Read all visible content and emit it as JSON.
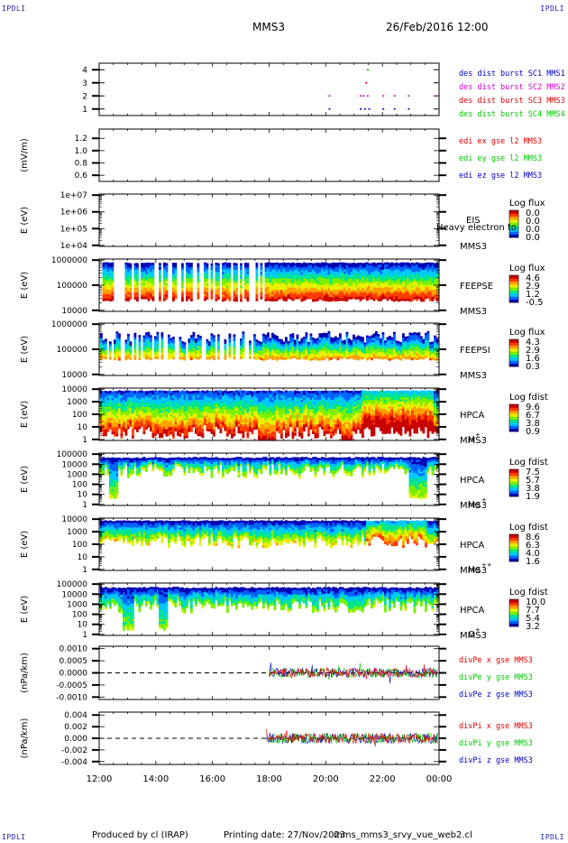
{
  "header": {
    "corner_label": "IPDLI",
    "spacecraft": "MMS3",
    "datetime": "26/Feb/2016 12:00"
  },
  "footer": {
    "produced_by": "Produced by cl (IRAP)",
    "printing_date": "Printing date: 27/Nov/2023",
    "filename": "mms_mms3_srvy_vue_web2.cl"
  },
  "colors": {
    "blue": "#0000c8",
    "magenta": "#d200d2",
    "red": "#dc0000",
    "green": "#00c800",
    "spectrogram_colormap": [
      "#0000b4",
      "#0064ff",
      "#00c8ff",
      "#00e68c",
      "#78f000",
      "#e6f000",
      "#ffa000",
      "#ff3c00",
      "#c80000"
    ]
  },
  "chart_data": [
    {
      "id": "des-dist-burst",
      "type": "scatter",
      "x_range": [
        "12:00",
        "00:00"
      ],
      "ylim": [
        0.5,
        4.5
      ],
      "yticks": [
        "1",
        "2",
        "3",
        "4"
      ],
      "series": [
        {
          "name": "des dist burst SC1 MMS1",
          "color": "#0000c8",
          "y": 1,
          "x_hours": [
            20.1,
            21.2,
            21.35,
            21.5,
            22.0,
            22.4,
            22.9
          ]
        },
        {
          "name": "des dist burst SC2 MMS2",
          "color": "#d200d2",
          "y": 2,
          "x_hours": [
            20.1,
            21.2,
            21.3,
            21.45,
            22.0,
            22.4,
            22.9,
            23.9
          ]
        },
        {
          "name": "des dist burst SC3 MMS3",
          "color": "#dc0000",
          "y": 3,
          "x_hours": [
            21.4
          ]
        },
        {
          "name": "des dist burst SC4 MMS4",
          "color": "#00c800",
          "y": 4,
          "x_hours": [
            21.45
          ]
        }
      ]
    },
    {
      "id": "edi-efield",
      "type": "line",
      "ylabel": "(mV/m)",
      "ylim": [
        0.5,
        1.35
      ],
      "yticks": [
        "0.6",
        "0.8",
        "1.0",
        "1.2"
      ],
      "legend": [
        {
          "name": "edi ex gse l2 MMS3",
          "color": "#dc0000"
        },
        {
          "name": "edi ey gse l2 MMS3",
          "color": "#00c800"
        },
        {
          "name": "edi ez gse l2 MMS3",
          "color": "#0000c8"
        }
      ]
    },
    {
      "id": "eis",
      "type": "heatmap",
      "ylabel": "E (eV)",
      "yscale": "log",
      "yticks": [
        "1e+04",
        "1e+05",
        "1e+06",
        "1e+07"
      ],
      "instrument": "EIS",
      "product": "Heavy electron to",
      "spacecraft": "MMS3",
      "colorbar_title": "Log flux",
      "colorbar_ticks": [
        "0.0",
        "0.0",
        "0.0",
        "0.0"
      ]
    },
    {
      "id": "feepse",
      "type": "heatmap",
      "ylabel": "E (eV)",
      "yscale": "log",
      "yticks": [
        "10000",
        "100000",
        "1000000"
      ],
      "instrument": "FEEPSE",
      "spacecraft": "MMS3",
      "colorbar_title": "Log flux",
      "colorbar_ticks": [
        "4.6",
        "2.9",
        "1.2",
        "-0.5"
      ]
    },
    {
      "id": "feepsi",
      "type": "heatmap",
      "ylabel": "E (eV)",
      "yscale": "log",
      "yticks": [
        "10000",
        "100000",
        "1000000"
      ],
      "instrument": "FEEPSI",
      "spacecraft": "MMS3",
      "colorbar_title": "Log flux",
      "colorbar_ticks": [
        "4.3",
        "2.9",
        "1.6",
        "0.3"
      ]
    },
    {
      "id": "hpca-h",
      "type": "heatmap",
      "ylabel": "E (eV)",
      "yscale": "log",
      "yticks": [
        "1",
        "10",
        "100",
        "1000",
        "10000"
      ],
      "instrument": "HPCA",
      "spacecraft": "MMS3",
      "species": "H",
      "species_charge": "+",
      "colorbar_title": "Log fdist",
      "colorbar_ticks": [
        "9.6",
        "6.7",
        "3.8",
        "0.9"
      ]
    },
    {
      "id": "hpca-he",
      "type": "heatmap",
      "ylabel": "E (eV)",
      "yscale": "log",
      "yticks": [
        "1",
        "10",
        "100",
        "1000",
        "10000",
        "100000"
      ],
      "instrument": "HPCA",
      "spacecraft": "MMS3",
      "species": "He",
      "species_charge": "+",
      "colorbar_title": "Log fdist",
      "colorbar_ticks": [
        "7.5",
        "5.7",
        "3.8",
        "1.9"
      ]
    },
    {
      "id": "hpca-he2",
      "type": "heatmap",
      "ylabel": "E (eV)",
      "yscale": "log",
      "yticks": [
        "1",
        "10",
        "100",
        "1000",
        "10000"
      ],
      "instrument": "HPCA",
      "spacecraft": "MMS3",
      "species": "He",
      "species_charge": "++",
      "colorbar_title": "Log fdist",
      "colorbar_ticks": [
        "8.6",
        "6.3",
        "4.0",
        "1.6"
      ]
    },
    {
      "id": "hpca-o",
      "type": "heatmap",
      "ylabel": "E (eV)",
      "yscale": "log",
      "yticks": [
        "1",
        "10",
        "100",
        "1000",
        "10000",
        "100000"
      ],
      "instrument": "HPCA",
      "spacecraft": "MMS3",
      "species": "O",
      "species_charge": "+",
      "colorbar_title": "Log fdist",
      "colorbar_ticks": [
        "10.0",
        "7.7",
        "5.4",
        "3.2"
      ]
    },
    {
      "id": "divpe",
      "type": "line",
      "ylabel": "(nPa/km)",
      "ylim": [
        -0.0011,
        0.0011
      ],
      "yticks": [
        "-0.0010",
        "-0.0005",
        "0.0000",
        "0.0005",
        "0.0010"
      ],
      "data_start_hour": 18.0,
      "amplitude": 0.0009,
      "legend": [
        {
          "name": "divPe x gse MMS3",
          "color": "#dc0000"
        },
        {
          "name": "divPe y gse MMS3",
          "color": "#00c800"
        },
        {
          "name": "divPe z gse MMS3",
          "color": "#0000c8"
        }
      ]
    },
    {
      "id": "divpi",
      "type": "line",
      "ylabel": "(nPa/km)",
      "ylim": [
        -0.0045,
        0.0045
      ],
      "yticks": [
        "-0.004",
        "-0.002",
        "0.000",
        "0.002",
        "0.004"
      ],
      "data_start_hour": 17.9,
      "amplitude": 0.004,
      "legend": [
        {
          "name": "divPi x gse MMS3",
          "color": "#dc0000"
        },
        {
          "name": "divPi y gse MMS3",
          "color": "#00c800"
        },
        {
          "name": "divPi z gse MMS3",
          "color": "#0000c8"
        }
      ]
    }
  ],
  "time_axis": {
    "range_hours": [
      12,
      24
    ],
    "tick_labels": [
      "12:00",
      "14:00",
      "16:00",
      "18:00",
      "20:00",
      "22:00",
      "00:00"
    ]
  }
}
